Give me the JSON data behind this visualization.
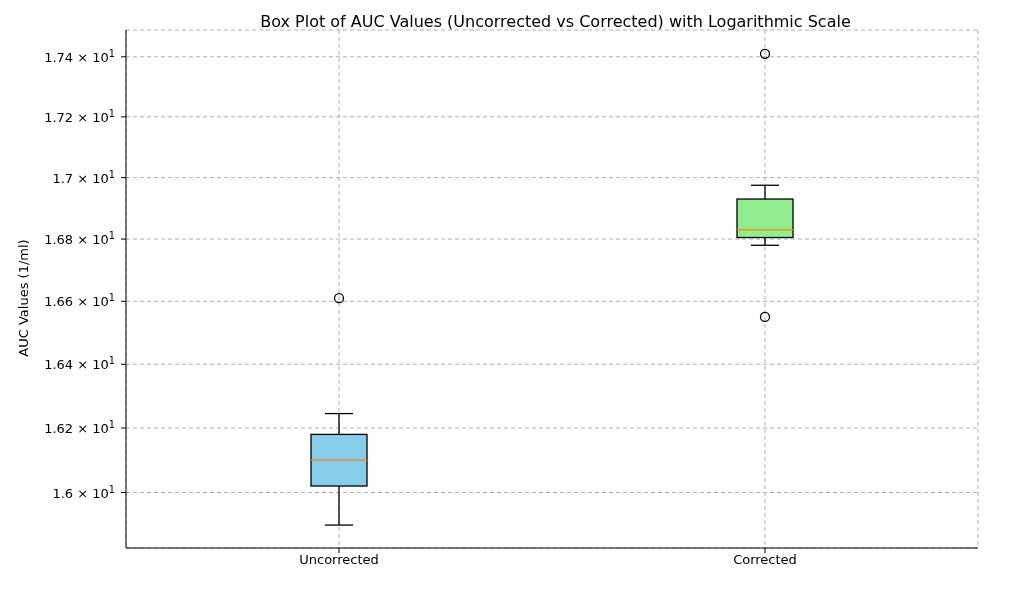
{
  "chart_data": {
    "type": "box",
    "title": "Box Plot of AUC Values (Uncorrected vs Corrected) with Logarithmic Scale",
    "ylabel": "AUC Values (1/ml)",
    "categories": [
      "Uncorrected",
      "Corrected"
    ],
    "colors": [
      "#87ceeb",
      "#90ee90"
    ],
    "boxes": [
      {
        "low": 15.9,
        "q1": 16.02,
        "median": 16.1,
        "q3": 16.18,
        "high": 16.245,
        "outliers": [
          16.61
        ]
      },
      {
        "low": 16.78,
        "q1": 16.805,
        "median": 16.83,
        "q3": 16.93,
        "high": 16.975,
        "outliers": [
          17.41,
          16.55
        ]
      }
    ],
    "log": true,
    "ylim": [
      15.83,
      17.49
    ],
    "yticks": [
      {
        "value": 16,
        "label": "1.6 × 10$^{1}$"
      },
      {
        "value": 16.2,
        "label": "1.62 × 10$^{1}$"
      },
      {
        "value": 16.4,
        "label": "1.64 × 10$^{1}$"
      },
      {
        "value": 16.6,
        "label": "1.66 × 10$^{1}$"
      },
      {
        "value": 16.8,
        "label": "1.68 × 10$^{1}$"
      },
      {
        "value": 17,
        "label": "1.7 × 10$^{1}$"
      },
      {
        "value": 17.2,
        "label": "1.72 × 10$^{1}$"
      },
      {
        "value": 17.4,
        "label": "1.74 × 10$^{1}$"
      }
    ],
    "grid": true,
    "legend": false
  }
}
